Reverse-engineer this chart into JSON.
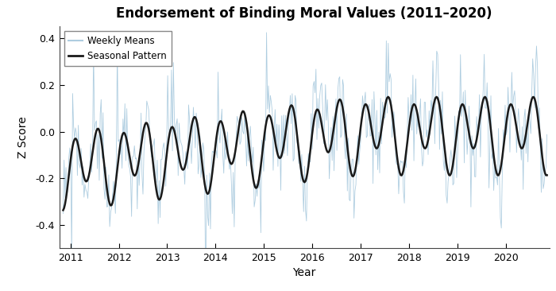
{
  "title": "Endorsement of Binding Moral Values (2011–2020)",
  "xlabel": "Year",
  "ylabel": "Z Score",
  "ylim": [
    -0.5,
    0.45
  ],
  "yticks": [
    -0.4,
    -0.2,
    0.0,
    0.2,
    0.4
  ],
  "xlim_start": 2010.77,
  "xlim_end": 2020.9,
  "xticks": [
    2011,
    2012,
    2013,
    2014,
    2015,
    2016,
    2017,
    2018,
    2019,
    2020
  ],
  "weekly_color": "#aecde0",
  "seasonal_color": "#1a1a1a",
  "weekly_linewidth": 0.6,
  "seasonal_linewidth": 1.8,
  "legend_labels": [
    "Weekly Means",
    "Seasonal Pattern"
  ],
  "n_weeks": 510,
  "start_year": 2010.85,
  "end_year": 2020.85
}
